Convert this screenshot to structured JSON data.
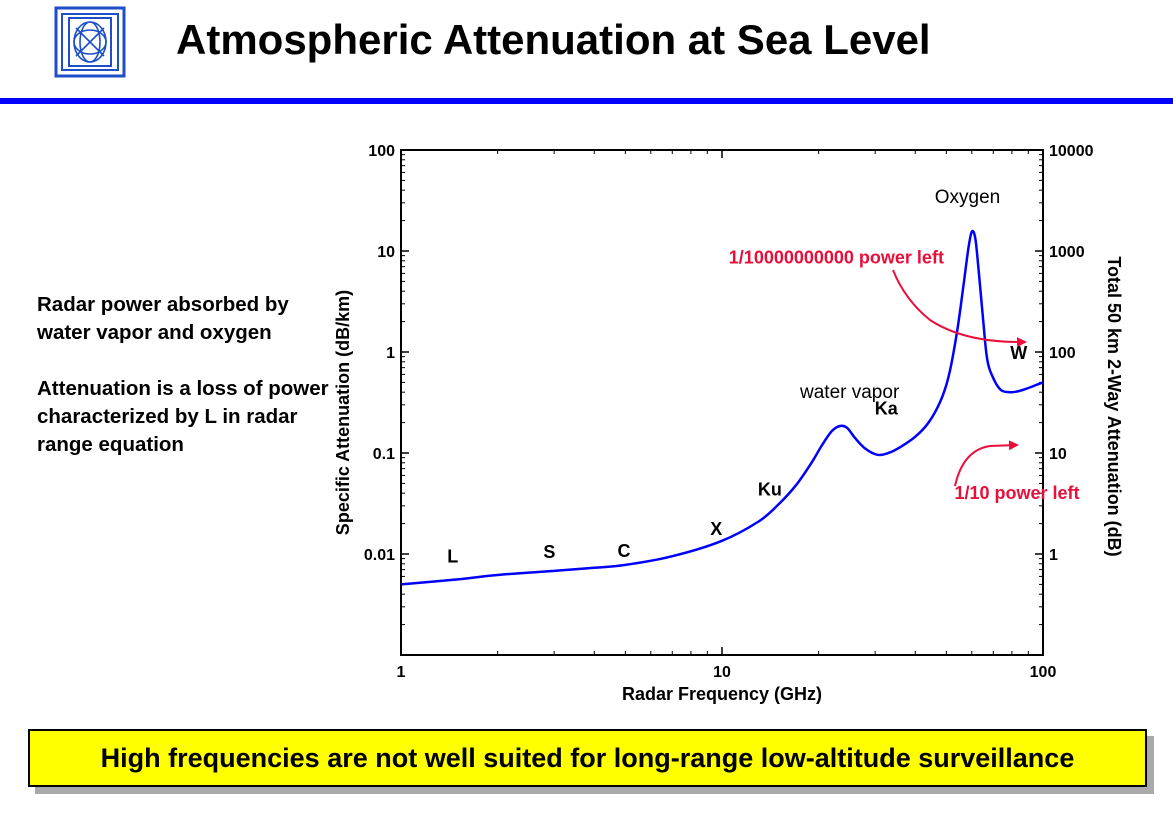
{
  "header": {
    "title": "Atmospheric Attenuation at Sea Level",
    "rule_color": "#0000ff",
    "logo_icon": "institution-crest-icon"
  },
  "text_panel": {
    "paragraphs": [
      "Radar power absorbed by water vapor and oxygen",
      "Attenuation is a loss of power characterized by L in radar range equation"
    ]
  },
  "banner": {
    "text": "High frequencies are not well suited for long-range low-altitude surveillance",
    "background": "#ffff00"
  },
  "chart_data": {
    "type": "line",
    "xlabel": "Radar Frequency (GHz)",
    "ylabel": "Specific Attenuation (dB/km)",
    "y2label": "Total 50 km 2-Way Attenuation (dB)",
    "xscale": "log",
    "yscale": "log",
    "xlim": [
      1,
      100
    ],
    "ylim": [
      0.001,
      100
    ],
    "y2lim": [
      0.1,
      10000
    ],
    "x_ticks": [
      "1",
      "10",
      "100"
    ],
    "y_ticks": [
      "0.01",
      "0.1",
      "1",
      "10",
      "100"
    ],
    "y2_ticks": [
      "1",
      "10",
      "100",
      "1000",
      "10000"
    ],
    "grid": false,
    "series": [
      {
        "color": "#0000ff",
        "x": [
          1,
          1.5,
          2,
          3,
          4,
          5,
          7,
          10,
          13,
          15,
          17,
          19,
          20.5,
          22,
          23.3,
          24.5,
          26,
          28,
          30.5,
          33,
          36,
          40,
          44,
          48,
          51,
          54,
          56.5,
          58.5,
          60,
          61.5,
          63,
          65,
          67,
          70,
          74,
          79,
          84,
          90,
          95,
          100
        ],
        "y": [
          0.005,
          0.0056,
          0.0062,
          0.0068,
          0.0073,
          0.0078,
          0.0095,
          0.0135,
          0.021,
          0.031,
          0.048,
          0.08,
          0.12,
          0.165,
          0.185,
          0.178,
          0.14,
          0.11,
          0.096,
          0.1,
          0.115,
          0.145,
          0.2,
          0.33,
          0.6,
          1.6,
          4.5,
          10.5,
          15.5,
          13.5,
          6.5,
          2.2,
          0.85,
          0.55,
          0.42,
          0.4,
          0.41,
          0.44,
          0.47,
          0.5
        ]
      }
    ],
    "band_labels": [
      {
        "text": "L",
        "x": 1.45,
        "y": 0.0082
      },
      {
        "text": "S",
        "x": 2.9,
        "y": 0.0091
      },
      {
        "text": "C",
        "x": 4.95,
        "y": 0.0093
      },
      {
        "text": "X",
        "x": 9.6,
        "y": 0.0155
      },
      {
        "text": "Ku",
        "x": 14.1,
        "y": 0.038
      },
      {
        "text": "Ka",
        "x": 32.5,
        "y": 0.24
      },
      {
        "text": "W",
        "x": 84,
        "y": 0.85
      }
    ],
    "annotations": [
      {
        "text": "water vapor",
        "x": 17.5,
        "y": 0.35,
        "color": "#000000"
      },
      {
        "text": "Oxygen",
        "x": 46,
        "y": 30,
        "color": "#000000"
      },
      {
        "text": "1/10000000000 power left",
        "x": 10.5,
        "y": 7.5,
        "color": "#e8103a"
      },
      {
        "text": "1/10 power left",
        "x": 53,
        "y": 0.035,
        "color": "#e8103a"
      }
    ]
  }
}
